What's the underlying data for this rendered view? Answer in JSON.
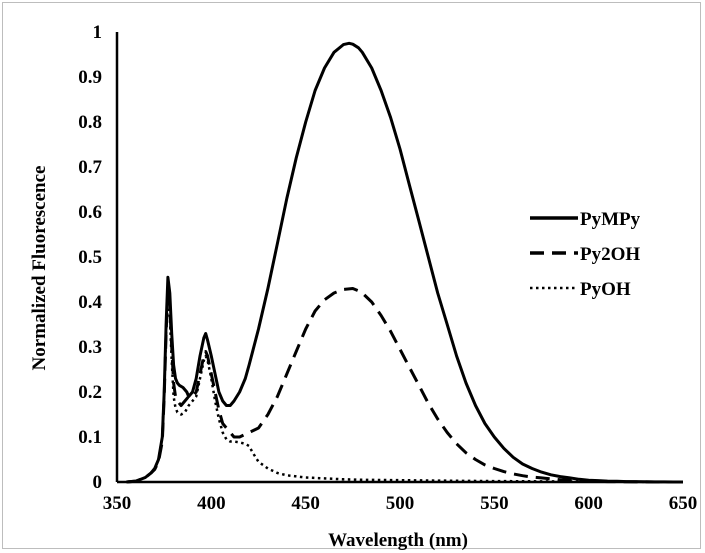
{
  "chart_data": {
    "type": "line",
    "title": "",
    "xlabel": "Wavelength (nm)",
    "ylabel": "Normalized  Fluorescence",
    "xlim": [
      350,
      650
    ],
    "ylim": [
      0,
      1
    ],
    "x_ticks": [
      "350",
      "400",
      "450",
      "500",
      "550",
      "600",
      "650"
    ],
    "y_ticks": [
      "0",
      "0.1",
      "0.2",
      "0.3",
      "0.4",
      "0.5",
      "0.6",
      "0.7",
      "0.8",
      "0.9",
      "1"
    ],
    "grid": false,
    "legend_position": "right",
    "series": [
      {
        "name": "PyMPy",
        "style": "solid",
        "color": "#000000",
        "x": [
          355,
          360,
          365,
          368,
          370,
          372,
          374,
          375,
          376,
          377,
          378,
          379,
          380,
          381,
          382,
          383,
          385,
          387,
          388,
          390,
          392,
          394,
          396,
          397,
          398,
          400,
          402,
          404,
          406,
          408,
          410,
          412,
          415,
          418,
          420,
          425,
          430,
          435,
          440,
          445,
          450,
          455,
          460,
          465,
          470,
          473,
          475,
          478,
          480,
          485,
          490,
          495,
          500,
          505,
          510,
          515,
          520,
          525,
          530,
          535,
          540,
          545,
          550,
          555,
          560,
          565,
          570,
          575,
          580,
          585,
          590,
          595,
          600,
          605,
          610,
          615,
          620,
          625,
          630,
          635,
          640,
          645,
          650
        ],
        "y": [
          0.0,
          0.002,
          0.01,
          0.02,
          0.03,
          0.05,
          0.1,
          0.2,
          0.35,
          0.455,
          0.42,
          0.33,
          0.26,
          0.23,
          0.22,
          0.215,
          0.21,
          0.2,
          0.19,
          0.2,
          0.23,
          0.28,
          0.32,
          0.33,
          0.315,
          0.28,
          0.24,
          0.2,
          0.18,
          0.17,
          0.17,
          0.18,
          0.2,
          0.23,
          0.26,
          0.34,
          0.43,
          0.53,
          0.63,
          0.72,
          0.8,
          0.87,
          0.92,
          0.955,
          0.972,
          0.975,
          0.973,
          0.965,
          0.955,
          0.92,
          0.87,
          0.81,
          0.74,
          0.66,
          0.58,
          0.5,
          0.42,
          0.35,
          0.28,
          0.22,
          0.17,
          0.13,
          0.1,
          0.075,
          0.055,
          0.04,
          0.03,
          0.022,
          0.016,
          0.012,
          0.009,
          0.006,
          0.004,
          0.003,
          0.002,
          0.0015,
          0.001,
          0.0008,
          0.0005,
          0.0003,
          0.0002,
          0.0001,
          0.0
        ]
      },
      {
        "name": "Py2OH",
        "style": "dashed",
        "color": "#000000",
        "x": [
          355,
          360,
          365,
          368,
          370,
          372,
          374,
          375,
          376,
          377,
          378,
          379,
          380,
          381,
          382,
          384,
          386,
          388,
          390,
          392,
          394,
          396,
          397,
          398,
          400,
          402,
          404,
          406,
          408,
          410,
          412,
          415,
          420,
          425,
          430,
          435,
          440,
          445,
          450,
          455,
          460,
          465,
          470,
          475,
          478,
          480,
          485,
          490,
          495,
          500,
          505,
          510,
          515,
          520,
          525,
          530,
          535,
          540,
          545,
          550,
          555,
          560,
          565,
          570,
          575,
          580,
          585,
          590,
          595,
          600,
          605,
          610,
          615,
          620,
          625,
          630,
          635,
          640,
          645,
          650
        ],
        "y": [
          0.0,
          0.002,
          0.01,
          0.02,
          0.028,
          0.045,
          0.09,
          0.19,
          0.33,
          0.43,
          0.39,
          0.3,
          0.22,
          0.19,
          0.18,
          0.17,
          0.18,
          0.19,
          0.19,
          0.2,
          0.24,
          0.28,
          0.29,
          0.28,
          0.24,
          0.2,
          0.16,
          0.13,
          0.12,
          0.11,
          0.1,
          0.1,
          0.11,
          0.12,
          0.15,
          0.19,
          0.24,
          0.29,
          0.34,
          0.38,
          0.405,
          0.42,
          0.428,
          0.43,
          0.425,
          0.42,
          0.4,
          0.37,
          0.335,
          0.295,
          0.255,
          0.215,
          0.175,
          0.14,
          0.11,
          0.085,
          0.065,
          0.05,
          0.038,
          0.03,
          0.023,
          0.018,
          0.014,
          0.011,
          0.009,
          0.007,
          0.005,
          0.004,
          0.003,
          0.002,
          0.0015,
          0.001,
          0.0008,
          0.0005,
          0.0003,
          0.0002,
          0.0001,
          0.0,
          0.0,
          0.0
        ]
      },
      {
        "name": "PyOH",
        "style": "dotted",
        "color": "#000000",
        "x": [
          355,
          360,
          365,
          368,
          370,
          372,
          374,
          375,
          376,
          377,
          378,
          379,
          380,
          381,
          382,
          384,
          386,
          388,
          390,
          392,
          394,
          396,
          397,
          398,
          400,
          402,
          404,
          406,
          408,
          410,
          412,
          415,
          418,
          420,
          422,
          425,
          430,
          435,
          440,
          450,
          460,
          470,
          480,
          500,
          520,
          550,
          600,
          650
        ],
        "y": [
          0.0,
          0.002,
          0.01,
          0.02,
          0.03,
          0.05,
          0.1,
          0.2,
          0.33,
          0.41,
          0.37,
          0.27,
          0.19,
          0.165,
          0.155,
          0.15,
          0.155,
          0.17,
          0.18,
          0.19,
          0.23,
          0.27,
          0.28,
          0.27,
          0.23,
          0.18,
          0.14,
          0.11,
          0.095,
          0.09,
          0.09,
          0.088,
          0.085,
          0.08,
          0.065,
          0.045,
          0.03,
          0.02,
          0.015,
          0.01,
          0.008,
          0.006,
          0.005,
          0.004,
          0.003,
          0.002,
          0.001,
          0.0
        ]
      }
    ]
  }
}
